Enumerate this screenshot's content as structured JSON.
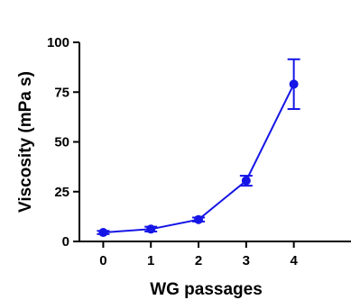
{
  "chart_data": {
    "type": "line",
    "title": "",
    "xlabel": "WG passages",
    "ylabel": "Viscosity (mPa s)",
    "x": [
      0,
      1,
      2,
      3,
      4
    ],
    "xticks": [
      "0",
      "1",
      "2",
      "3",
      "4"
    ],
    "xlim": [
      -0.5,
      5.2
    ],
    "ylim": [
      0,
      100
    ],
    "yticks": [
      "0",
      "25",
      "50",
      "75",
      "100"
    ],
    "grid": false,
    "legend": "none",
    "color": "#1515e6",
    "series": [
      {
        "values": [
          4.5,
          6.2,
          11.0,
          30.5,
          79.0
        ],
        "error": [
          0.8,
          1.2,
          1.0,
          2.5,
          12.5
        ]
      }
    ]
  }
}
